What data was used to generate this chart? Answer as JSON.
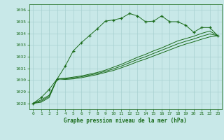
{
  "title": "Graphe pression niveau de la mer (hPa)",
  "xlabel_ticks": [
    0,
    1,
    2,
    3,
    4,
    5,
    6,
    7,
    8,
    9,
    10,
    11,
    12,
    13,
    14,
    15,
    16,
    17,
    18,
    19,
    20,
    21,
    22,
    23
  ],
  "ylim": [
    1027.5,
    1036.5
  ],
  "xlim": [
    -0.5,
    23.5
  ],
  "yticks": [
    1028,
    1029,
    1030,
    1031,
    1032,
    1033,
    1034,
    1035,
    1036
  ],
  "bg_color": "#c8e8e8",
  "grid_color": "#a8d0d0",
  "line_color": "#1a6b1a",
  "line1_x": [
    0,
    1,
    2,
    3,
    4,
    5,
    6,
    7,
    8,
    9,
    10,
    11,
    12,
    13,
    14,
    15,
    16,
    17,
    18,
    19,
    20,
    21,
    22,
    23
  ],
  "line1_y": [
    1028.0,
    1028.5,
    1029.2,
    1030.1,
    1031.2,
    1032.5,
    1033.2,
    1033.8,
    1034.4,
    1035.05,
    1035.15,
    1035.3,
    1035.7,
    1035.5,
    1035.0,
    1035.05,
    1035.5,
    1035.0,
    1035.0,
    1034.7,
    1034.1,
    1034.5,
    1034.5,
    1033.8
  ],
  "line2_x": [
    0,
    1,
    2,
    3,
    4,
    5,
    6,
    7,
    8,
    9,
    10,
    11,
    12,
    13,
    14,
    15,
    16,
    17,
    18,
    19,
    20,
    21,
    22,
    23
  ],
  "line2_y": [
    1028.0,
    1028.3,
    1028.7,
    1030.1,
    1030.15,
    1030.25,
    1030.35,
    1030.5,
    1030.65,
    1030.85,
    1031.1,
    1031.35,
    1031.65,
    1031.95,
    1032.2,
    1032.5,
    1032.75,
    1033.05,
    1033.35,
    1033.55,
    1033.75,
    1034.0,
    1034.2,
    1033.8
  ],
  "line3_x": [
    0,
    1,
    2,
    3,
    4,
    5,
    6,
    7,
    8,
    9,
    10,
    11,
    12,
    13,
    14,
    15,
    16,
    17,
    18,
    19,
    20,
    21,
    22,
    23
  ],
  "line3_y": [
    1028.0,
    1028.2,
    1028.6,
    1030.1,
    1030.1,
    1030.18,
    1030.28,
    1030.42,
    1030.56,
    1030.75,
    1030.95,
    1031.2,
    1031.48,
    1031.76,
    1032.0,
    1032.28,
    1032.55,
    1032.82,
    1033.1,
    1033.32,
    1033.52,
    1033.75,
    1033.95,
    1033.8
  ],
  "line4_x": [
    0,
    1,
    2,
    3,
    4,
    5,
    6,
    7,
    8,
    9,
    10,
    11,
    12,
    13,
    14,
    15,
    16,
    17,
    18,
    19,
    20,
    21,
    22,
    23
  ],
  "line4_y": [
    1028.0,
    1028.1,
    1028.5,
    1030.1,
    1030.05,
    1030.1,
    1030.2,
    1030.33,
    1030.47,
    1030.65,
    1030.82,
    1031.05,
    1031.3,
    1031.57,
    1031.8,
    1032.06,
    1032.32,
    1032.58,
    1032.85,
    1033.08,
    1033.28,
    1033.5,
    1033.7,
    1033.8
  ]
}
